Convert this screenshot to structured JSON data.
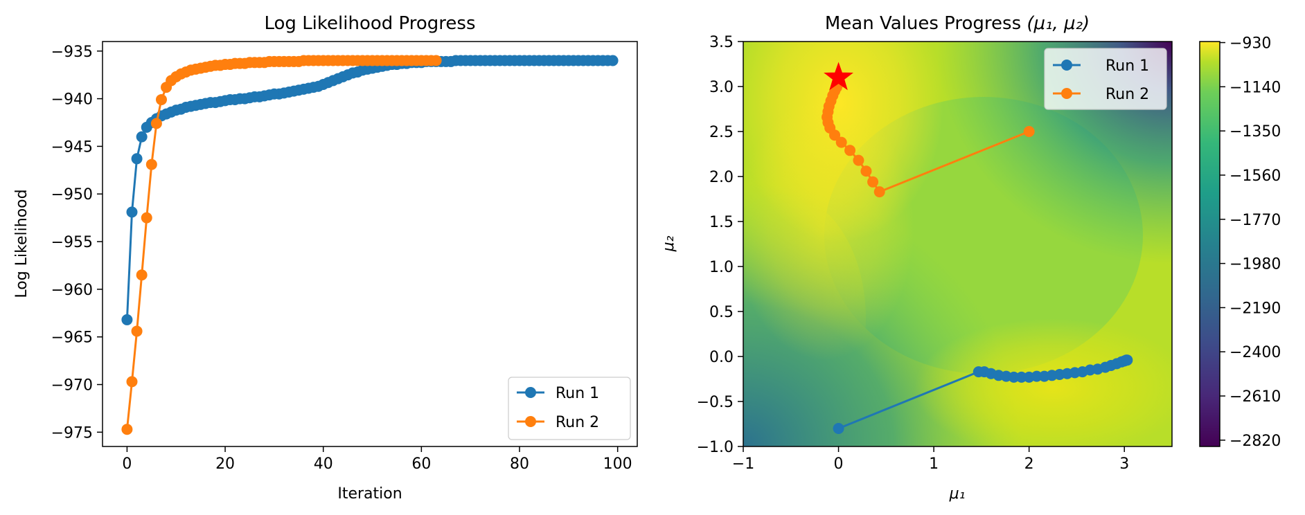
{
  "chart_data": [
    {
      "type": "line",
      "title": "Log Likelihood Progress",
      "xlabel": "Iteration",
      "ylabel": "Log Likelihood",
      "xlim": [
        -5,
        104
      ],
      "ylim": [
        -976.5,
        -934.0
      ],
      "xticks": [
        0,
        20,
        40,
        60,
        80,
        100
      ],
      "xtick_labels": [
        "0",
        "20",
        "40",
        "60",
        "80",
        "100"
      ],
      "yticks": [
        -935,
        -940,
        -945,
        -950,
        -955,
        -960,
        -965,
        -970,
        -975
      ],
      "ytick_labels": [
        "−935",
        "−940",
        "−945",
        "−950",
        "−955",
        "−960",
        "−965",
        "−970",
        "−975"
      ],
      "grid": false,
      "legend": "bottom-right",
      "series": [
        {
          "name": "Run 1",
          "color": "#1f77b4",
          "x_start": 0,
          "values": [
            -963.2,
            -951.9,
            -946.3,
            -944.0,
            -943.0,
            -942.5,
            -942.1,
            -941.8,
            -941.6,
            -941.4,
            -941.2,
            -941.1,
            -940.9,
            -940.8,
            -940.7,
            -940.6,
            -940.5,
            -940.4,
            -940.4,
            -940.3,
            -940.2,
            -940.1,
            -940.1,
            -940.0,
            -940.0,
            -939.9,
            -939.8,
            -939.8,
            -939.7,
            -939.6,
            -939.5,
            -939.5,
            -939.4,
            -939.3,
            -939.2,
            -939.1,
            -939.0,
            -938.9,
            -938.8,
            -938.7,
            -938.5,
            -938.3,
            -938.1,
            -937.9,
            -937.7,
            -937.5,
            -937.3,
            -937.2,
            -937.0,
            -936.9,
            -936.8,
            -936.7,
            -936.6,
            -936.5,
            -936.4,
            -936.4,
            -936.3,
            -936.3,
            -936.2,
            -936.2,
            -936.2,
            -936.1,
            -936.1,
            -936.1,
            -936.1,
            -936.1,
            -936.1,
            -936.0,
            -936.0,
            -936.0,
            -936.0,
            -936.0,
            -936.0,
            -936.0,
            -936.0,
            -936.0,
            -936.0,
            -936.0,
            -936.0,
            -936.0,
            -936.0,
            -936.0,
            -936.0,
            -936.0,
            -936.0,
            -936.0,
            -936.0,
            -936.0,
            -936.0,
            -936.0,
            -936.0,
            -936.0,
            -936.0,
            -936.0,
            -936.0,
            -936.0,
            -936.0,
            -936.0,
            -936.0,
            -936.0
          ]
        },
        {
          "name": "Run 2",
          "color": "#ff7f0e",
          "x_start": 0,
          "values": [
            -974.7,
            -969.7,
            -964.4,
            -958.5,
            -952.5,
            -946.9,
            -942.6,
            -940.1,
            -938.8,
            -938.1,
            -937.7,
            -937.4,
            -937.2,
            -937.0,
            -936.9,
            -936.8,
            -936.7,
            -936.6,
            -936.5,
            -936.5,
            -936.4,
            -936.4,
            -936.3,
            -936.3,
            -936.3,
            -936.2,
            -936.2,
            -936.2,
            -936.2,
            -936.1,
            -936.1,
            -936.1,
            -936.1,
            -936.1,
            -936.1,
            -936.1,
            -936.0,
            -936.0,
            -936.0,
            -936.0,
            -936.0,
            -936.0,
            -936.0,
            -936.0,
            -936.0,
            -936.0,
            -936.0,
            -936.0,
            -936.0,
            -936.0,
            -936.0,
            -936.0,
            -936.0,
            -936.0,
            -936.0,
            -936.0,
            -936.0,
            -936.0,
            -936.0,
            -936.0,
            -936.0,
            -936.0,
            -936.0,
            -936.0
          ]
        }
      ]
    },
    {
      "type": "heatmap",
      "title": "Mean Values Progress ",
      "title_math": "(μ₁, μ₂)",
      "xlabel": "μ₁",
      "ylabel": "μ₂",
      "xlim": [
        -1,
        3.5
      ],
      "ylim": [
        -1,
        3.5
      ],
      "xticks": [
        -1,
        0,
        1,
        2,
        3
      ],
      "xtick_labels": [
        "−1",
        "0",
        "1",
        "2",
        "3"
      ],
      "yticks": [
        -1.0,
        -0.5,
        0.0,
        0.5,
        1.0,
        1.5,
        2.0,
        2.5,
        3.0,
        3.5
      ],
      "ytick_labels": [
        "−1.0",
        "−0.5",
        "0.0",
        "0.5",
        "1.0",
        "1.5",
        "2.0",
        "2.5",
        "3.0",
        "3.5"
      ],
      "colormap": "viridis",
      "colorbar_range": [
        -2850,
        -925
      ],
      "colorbar_ticks": [
        -930,
        -1140,
        -1350,
        -1560,
        -1770,
        -1980,
        -2190,
        -2400,
        -2610,
        -2820
      ],
      "colorbar_tick_labels": [
        "−930",
        "−1140",
        "−1350",
        "−1560",
        "−1770",
        "−1980",
        "−2190",
        "−2400",
        "−2610",
        "−2820"
      ],
      "legend": "top-right",
      "series": [
        {
          "name": "Run 1",
          "color": "#1f77b4",
          "points": [
            [
              0.0,
              -0.8
            ],
            [
              1.47,
              -0.17
            ],
            [
              1.53,
              -0.17
            ],
            [
              1.6,
              -0.19
            ],
            [
              1.68,
              -0.21
            ],
            [
              1.76,
              -0.22
            ],
            [
              1.84,
              -0.23
            ],
            [
              1.92,
              -0.23
            ],
            [
              2.0,
              -0.23
            ],
            [
              2.08,
              -0.22
            ],
            [
              2.16,
              -0.22
            ],
            [
              2.24,
              -0.21
            ],
            [
              2.32,
              -0.2
            ],
            [
              2.4,
              -0.19
            ],
            [
              2.48,
              -0.18
            ],
            [
              2.56,
              -0.17
            ],
            [
              2.64,
              -0.15
            ],
            [
              2.72,
              -0.14
            ],
            [
              2.8,
              -0.12
            ],
            [
              2.86,
              -0.1
            ],
            [
              2.92,
              -0.08
            ],
            [
              2.97,
              -0.06
            ],
            [
              3.0,
              -0.05
            ],
            [
              3.02,
              -0.04
            ],
            [
              3.03,
              -0.04
            ]
          ]
        },
        {
          "name": "Run 2",
          "color": "#ff7f0e",
          "points": [
            [
              2.0,
              2.5
            ],
            [
              0.43,
              1.83
            ],
            [
              0.36,
              1.94
            ],
            [
              0.29,
              2.06
            ],
            [
              0.21,
              2.18
            ],
            [
              0.12,
              2.29
            ],
            [
              0.03,
              2.38
            ],
            [
              -0.04,
              2.46
            ],
            [
              -0.09,
              2.54
            ],
            [
              -0.11,
              2.6
            ],
            [
              -0.12,
              2.66
            ],
            [
              -0.11,
              2.72
            ],
            [
              -0.1,
              2.78
            ],
            [
              -0.08,
              2.84
            ],
            [
              -0.06,
              2.9
            ],
            [
              -0.04,
              2.95
            ],
            [
              -0.02,
              2.99
            ],
            [
              -0.01,
              3.02
            ]
          ]
        }
      ],
      "marker": {
        "type": "star",
        "color": "#ff0000",
        "point": [
          0.0,
          3.1
        ]
      }
    }
  ]
}
